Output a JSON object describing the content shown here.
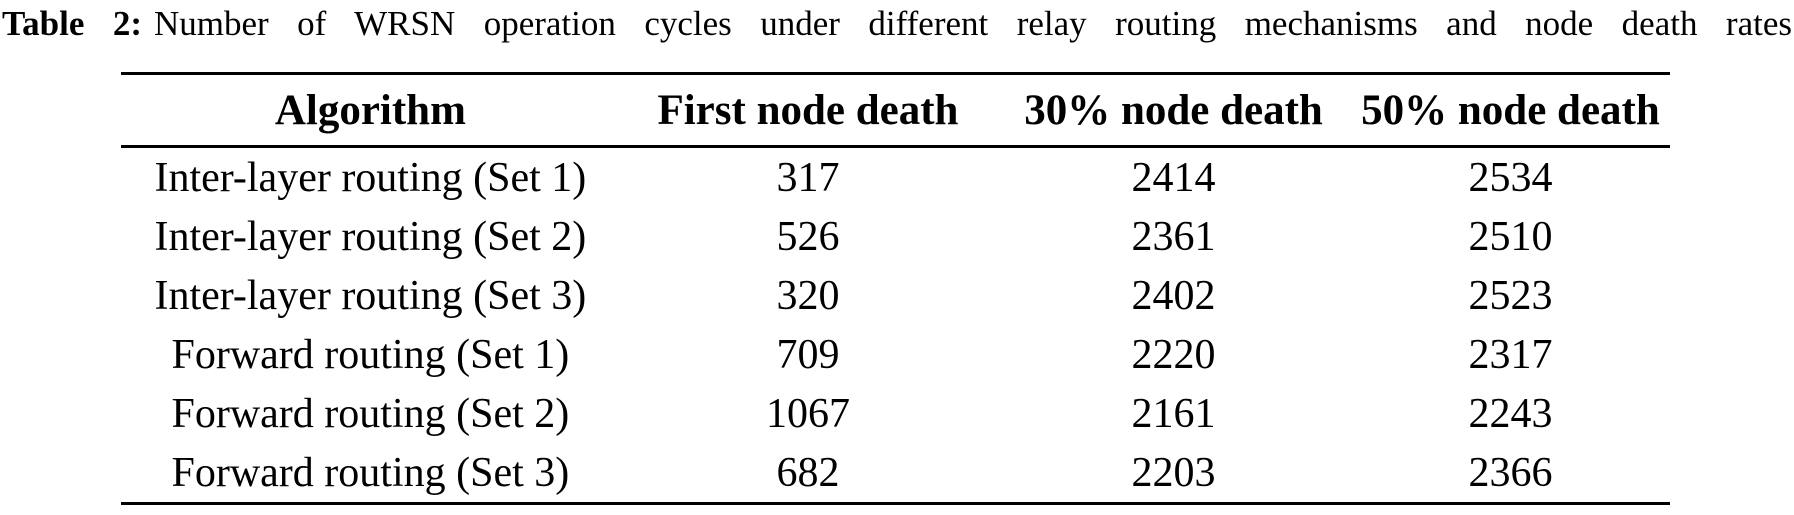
{
  "caption": {
    "label": "Table 2:",
    "text": "Number of WRSN operation cycles under different relay routing mechanisms and node death rates"
  },
  "table": {
    "columns": [
      "Algorithm",
      "First node death",
      "30% node death",
      "50% node death"
    ],
    "rows": [
      [
        "Inter-layer routing (Set 1)",
        "317",
        "2414",
        "2534"
      ],
      [
        "Inter-layer routing (Set 2)",
        "526",
        "2361",
        "2510"
      ],
      [
        "Inter-layer routing (Set 3)",
        "320",
        "2402",
        "2523"
      ],
      [
        "Forward routing (Set 1)",
        "709",
        "2220",
        "2317"
      ],
      [
        "Forward routing (Set 2)",
        "1067",
        "2161",
        "2243"
      ],
      [
        "Forward routing (Set 3)",
        "682",
        "2203",
        "2366"
      ]
    ]
  },
  "colors": {
    "text": "#000000",
    "background": "#ffffff",
    "rule": "#000000"
  }
}
